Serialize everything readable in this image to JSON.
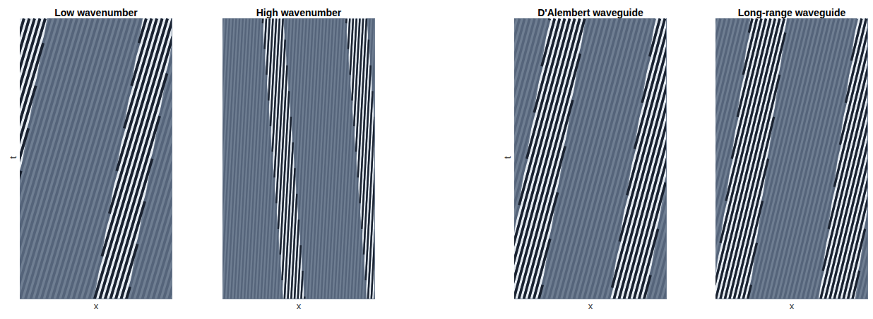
{
  "chart_data": [
    {
      "type": "wave_pattern",
      "title": "Low wavenumber",
      "x_label": "x",
      "y_label": "t",
      "xlim": [
        0,
        1
      ],
      "ylim": [
        0,
        1
      ],
      "tick_labels": false,
      "stripes": {
        "shift": 0.55,
        "x_at_t0": [
          -0.56,
          -0.525,
          -0.49,
          -0.455,
          -0.42,
          -0.385,
          -0.35,
          -0.315,
          -0.28,
          -0.245,
          -0.21,
          -0.175,
          -0.14,
          -0.105,
          -0.07,
          -0.035,
          0,
          0.035,
          0.07,
          0.105,
          0.14,
          0.175,
          0.21,
          0.245,
          0.28,
          0.315,
          0.35,
          0.385,
          0.42,
          0.455,
          0.49,
          0.525,
          0.56,
          0.595,
          0.63,
          0.665,
          0.7,
          0.735,
          0.77,
          0.805,
          0.84,
          0.875,
          0.91,
          0.945,
          0.98
        ]
      },
      "bands": [
        {
          "x_at_t0": -0.25,
          "x_at_t1": 0.07,
          "half_width": 0.11
        },
        {
          "x_at_t0": 0.6,
          "x_at_t1": 0.92,
          "half_width": 0.11
        }
      ]
    },
    {
      "type": "wave_pattern",
      "title": "High wavenumber",
      "x_label": "x",
      "xlim": [
        0,
        1
      ],
      "ylim": [
        0,
        1
      ],
      "tick_labels": false,
      "stripes": {
        "shift": 0.1,
        "x_at_t0": [
          -0.1,
          -0.078,
          -0.056,
          -0.034,
          -0.012,
          0.01,
          0.032,
          0.054,
          0.076,
          0.098,
          0.12,
          0.142,
          0.164,
          0.186,
          0.208,
          0.23,
          0.252,
          0.274,
          0.296,
          0.318,
          0.34,
          0.362,
          0.384,
          0.406,
          0.428,
          0.45,
          0.472,
          0.494,
          0.516,
          0.538,
          0.56,
          0.582,
          0.604,
          0.626,
          0.648,
          0.67,
          0.692,
          0.714,
          0.736,
          0.758,
          0.78,
          0.802,
          0.824,
          0.846,
          0.868,
          0.89,
          0.912,
          0.934,
          0.956,
          0.978,
          1.0
        ]
      },
      "bands": [
        {
          "x_at_t0": 0.47,
          "x_at_t1": 0.33,
          "half_width": 0.07
        },
        {
          "x_at_t0": 1.02,
          "x_at_t1": 0.88,
          "half_width": 0.07
        }
      ]
    },
    {
      "type": "wave_pattern",
      "title": "D'Alembert waveguide",
      "x_label": "x",
      "y_label": "t",
      "xlim": [
        0,
        1
      ],
      "ylim": [
        0,
        1
      ],
      "tick_labels": false,
      "stripes": {
        "shift": 0.5,
        "x_at_t0": [
          -0.5,
          -0.467,
          -0.434,
          -0.401,
          -0.368,
          -0.335,
          -0.302,
          -0.269,
          -0.236,
          -0.203,
          -0.17,
          -0.137,
          -0.104,
          -0.071,
          -0.038,
          -0.005,
          0.028,
          0.061,
          0.094,
          0.127,
          0.16,
          0.193,
          0.226,
          0.259,
          0.292,
          0.325,
          0.358,
          0.391,
          0.424,
          0.457,
          0.49,
          0.523,
          0.556,
          0.589,
          0.622,
          0.655,
          0.688,
          0.721,
          0.754,
          0.787,
          0.82,
          0.853,
          0.886,
          0.919,
          0.952,
          0.985
        ]
      },
      "bands": [
        {
          "x_at_t0": 0.05,
          "x_at_t1": 0.35,
          "half_width": 0.12
        },
        {
          "x_at_t0": 0.75,
          "x_at_t1": 1.05,
          "half_width": 0.12
        }
      ]
    },
    {
      "type": "wave_pattern",
      "title": "Long-range waveguide",
      "x_label": "x",
      "xlim": [
        0,
        1
      ],
      "ylim": [
        0,
        1
      ],
      "tick_labels": false,
      "stripes": {
        "shift": 0.45,
        "x_at_t0": [
          -0.45,
          -0.42,
          -0.39,
          -0.36,
          -0.33,
          -0.3,
          -0.27,
          -0.24,
          -0.21,
          -0.18,
          -0.15,
          -0.12,
          -0.09,
          -0.06,
          -0.03,
          0,
          0.03,
          0.06,
          0.09,
          0.12,
          0.15,
          0.18,
          0.21,
          0.24,
          0.27,
          0.3,
          0.33,
          0.36,
          0.39,
          0.42,
          0.45,
          0.48,
          0.51,
          0.54,
          0.57,
          0.6,
          0.63,
          0.66,
          0.69,
          0.72,
          0.75,
          0.78,
          0.81,
          0.84,
          0.87,
          0.9,
          0.93,
          0.96,
          0.99
        ]
      },
      "bands": [
        {
          "x_at_t0": 0.1,
          "x_at_t1": 0.35,
          "half_width": 0.12
        },
        {
          "x_at_t0": 0.8,
          "x_at_t1": 1.05,
          "half_width": 0.12
        }
      ]
    }
  ]
}
